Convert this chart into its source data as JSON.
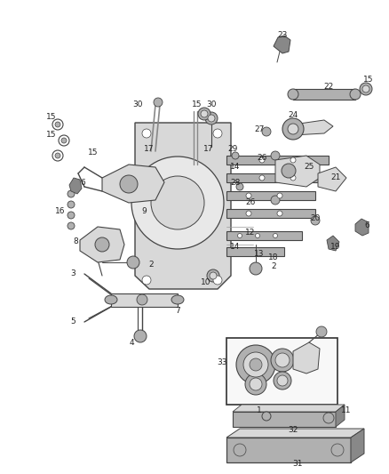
{
  "background_color": "#ffffff",
  "fig_width": 4.38,
  "fig_height": 5.33,
  "dpi": 100,
  "label_fontsize": 6.5,
  "label_color": "#222222",
  "line_color": "#444444",
  "gray_light": "#d8d8d8",
  "gray_mid": "#b0b0b0",
  "gray_dark": "#888888"
}
